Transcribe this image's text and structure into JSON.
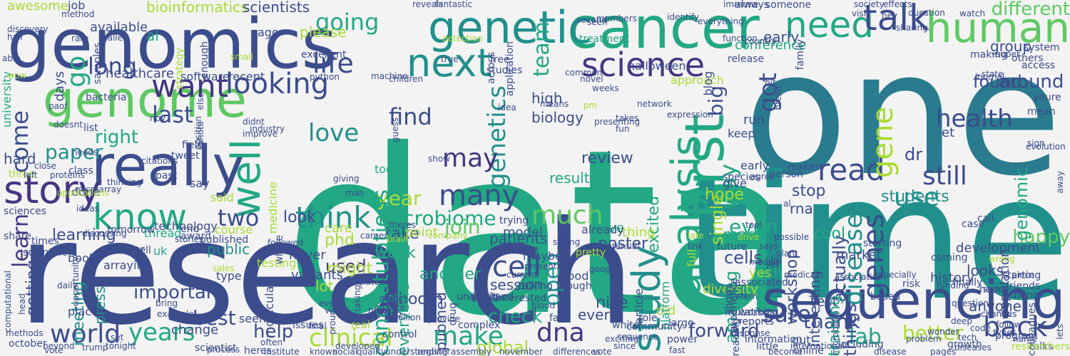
{
  "palette": {
    "background": "#f3f3f3",
    "navy": "#3b4d8c",
    "indigo": "#453581",
    "teal": "#2a7b8e",
    "cyan": "#21908c",
    "green": "#22a884",
    "lightgreen": "#5ec962",
    "lime": "#a8db34",
    "yellow": "#d8e219"
  },
  "words": [
    {
      "text": "data"
    },
    {
      "text": "one"
    },
    {
      "text": "time"
    },
    {
      "text": "research"
    },
    {
      "text": "genomics"
    },
    {
      "text": "cancer"
    },
    {
      "text": "genome"
    },
    {
      "text": "really"
    },
    {
      "text": "genetic"
    },
    {
      "text": "human"
    },
    {
      "text": "need"
    },
    {
      "text": "talk"
    },
    {
      "text": "next"
    },
    {
      "text": "science"
    },
    {
      "text": "sequencing"
    },
    {
      "text": "first"
    },
    {
      "text": "study"
    },
    {
      "text": "analysis"
    },
    {
      "text": "story"
    },
    {
      "text": "know"
    },
    {
      "text": "well"
    },
    {
      "text": "want"
    },
    {
      "text": "looking"
    },
    {
      "text": "life"
    },
    {
      "text": "read"
    },
    {
      "text": "use"
    },
    {
      "text": "still"
    },
    {
      "text": "health"
    },
    {
      "text": "many"
    },
    {
      "text": "much"
    },
    {
      "text": "think"
    },
    {
      "text": "cell"
    },
    {
      "text": "dna"
    },
    {
      "text": "world"
    },
    {
      "text": "make"
    },
    {
      "text": "back"
    },
    {
      "text": "clinical"
    },
    {
      "text": "sure"
    },
    {
      "text": "genetics"
    },
    {
      "text": "love"
    },
    {
      "text": "may"
    },
    {
      "text": "two"
    },
    {
      "text": "going"
    },
    {
      "text": "long"
    },
    {
      "text": "go"
    },
    {
      "text": "last"
    },
    {
      "text": "paper"
    },
    {
      "text": "year"
    },
    {
      "text": "come"
    },
    {
      "text": "find"
    },
    {
      "text": "team"
    },
    {
      "text": "got"
    },
    {
      "text": "gene"
    },
    {
      "text": "genes"
    },
    {
      "text": "disease"
    },
    {
      "text": "way"
    },
    {
      "text": "years"
    },
    {
      "text": "best"
    },
    {
      "text": "lab"
    },
    {
      "text": "better"
    },
    {
      "text": "help"
    },
    {
      "text": "important"
    },
    {
      "text": "microbiome"
    },
    {
      "text": "join"
    },
    {
      "text": "open"
    },
    {
      "text": "learn"
    },
    {
      "text": "right"
    },
    {
      "text": "hard"
    },
    {
      "text": "even"
    },
    {
      "text": "forward"
    },
    {
      "text": "check"
    },
    {
      "text": "used"
    },
    {
      "text": "big"
    },
    {
      "text": "thank"
    },
    {
      "text": "happy"
    },
    {
      "text": "found"
    },
    {
      "text": "different"
    },
    {
      "text": "around"
    },
    {
      "text": "high"
    },
    {
      "text": "biology"
    },
    {
      "text": "week"
    },
    {
      "text": "another"
    },
    {
      "text": "take"
    },
    {
      "text": "review"
    },
    {
      "text": "poster"
    },
    {
      "text": "excited"
    },
    {
      "text": "cells"
    },
    {
      "text": "made"
    },
    {
      "text": "stop"
    },
    {
      "text": "cool"
    },
    {
      "text": "hope"
    },
    {
      "text": "students"
    },
    {
      "text": "dr"
    },
    {
      "text": "genomic"
    },
    {
      "text": "things"
    },
    {
      "text": "interesting"
    },
    {
      "text": "actually"
    },
    {
      "text": "early"
    },
    {
      "text": "run"
    },
    {
      "text": "please"
    },
    {
      "text": "bioinformatics"
    },
    {
      "text": "scientists"
    },
    {
      "text": "available"
    },
    {
      "text": "awesome"
    },
    {
      "text": "job"
    },
    {
      "text": "ai"
    },
    {
      "text": "patients"
    },
    {
      "text": "conference"
    },
    {
      "text": "group"
    },
    {
      "text": "workshop"
    },
    {
      "text": "development"
    },
    {
      "text": "rna"
    },
    {
      "text": "th"
    },
    {
      "text": "done"
    },
    {
      "text": "results"
    },
    {
      "text": "said"
    },
    {
      "text": "lot"
    },
    {
      "text": "phd"
    },
    {
      "text": "might"
    },
    {
      "text": "congratulations"
    },
    {
      "text": "booth"
    },
    {
      "text": "looks"
    },
    {
      "text": "training"
    },
    {
      "text": "amazing"
    },
    {
      "text": "single"
    },
    {
      "text": "look"
    },
    {
      "text": "learning"
    },
    {
      "text": "getting"
    },
    {
      "text": "meeting"
    },
    {
      "text": "press"
    },
    {
      "text": "public"
    },
    {
      "text": "nice"
    },
    {
      "text": "every"
    },
    {
      "text": "everyone"
    },
    {
      "text": "pubmed"
    },
    {
      "text": "global"
    },
    {
      "text": "model"
    },
    {
      "text": "live"
    },
    {
      "text": "thing"
    },
    {
      "text": "care"
    },
    {
      "text": "point"
    },
    {
      "text": "test"
    },
    {
      "text": "population"
    },
    {
      "text": "et"
    },
    {
      "text": "gut"
    },
    {
      "text": "yes"
    },
    {
      "text": "market"
    },
    {
      "text": "history"
    },
    {
      "text": "anyone"
    },
    {
      "text": "never"
    },
    {
      "text": "variants"
    },
    {
      "text": "session"
    },
    {
      "text": "protein"
    },
    {
      "text": "wait"
    },
    {
      "text": "maybe"
    },
    {
      "text": "already"
    },
    {
      "text": "food"
    },
    {
      "text": "old"
    },
    {
      "text": "diversity"
    },
    {
      "text": "full"
    },
    {
      "text": "platform"
    },
    {
      "text": "article"
    },
    {
      "text": "experience"
    },
    {
      "text": "early"
    },
    {
      "text": "tools"
    },
    {
      "text": "days"
    },
    {
      "text": "healthcare"
    },
    {
      "text": "software"
    },
    {
      "text": "recent"
    },
    {
      "text": "say"
    },
    {
      "text": "medicine"
    },
    {
      "text": "technology"
    },
    {
      "text": "thread"
    },
    {
      "text": "course"
    },
    {
      "text": "halloween"
    },
    {
      "text": "give"
    },
    {
      "text": "approach"
    },
    {
      "text": "keep"
    },
    {
      "text": "blog"
    },
    {
      "text": "seems"
    },
    {
      "text": "change"
    },
    {
      "text": "place"
    },
    {
      "text": "book"
    },
    {
      "text": "uk"
    },
    {
      "text": "type"
    },
    {
      "text": "arrayit"
    },
    {
      "text": "testing"
    },
    {
      "text": "university"
    },
    {
      "text": "bacteria"
    },
    {
      "text": "samples"
    },
    {
      "text": "strategy"
    },
    {
      "text": "enough"
    },
    {
      "text": "ago"
    },
    {
      "text": "free"
    },
    {
      "text": "studies"
    },
    {
      "text": "across"
    },
    {
      "text": "excellent"
    },
    {
      "text": "treatment"
    },
    {
      "text": "application"
    },
    {
      "text": "family"
    },
    {
      "text": "fantastic"
    },
    {
      "text": "reveals"
    },
    {
      "text": "someone"
    },
    {
      "text": "always"
    },
    {
      "text": "release"
    },
    {
      "text": "making"
    },
    {
      "text": "system"
    },
    {
      "text": "access"
    },
    {
      "text": "others"
    },
    {
      "text": "mean"
    },
    {
      "text": "youre"
    },
    {
      "text": "state"
    },
    {
      "text": "follow"
    },
    {
      "text": "nov"
    },
    {
      "text": "field"
    },
    {
      "text": "tweet"
    },
    {
      "text": "past"
    },
    {
      "text": "list"
    },
    {
      "text": "three"
    },
    {
      "text": "class"
    },
    {
      "text": "number"
    },
    {
      "text": "tell"
    },
    {
      "text": "award"
    },
    {
      "text": "end"
    },
    {
      "text": "published"
    },
    {
      "text": "tomorrow"
    },
    {
      "text": "opportunity"
    },
    {
      "text": "times"
    },
    {
      "text": "sciences"
    },
    {
      "text": "share"
    },
    {
      "text": "scientific"
    },
    {
      "text": "computational"
    },
    {
      "text": "trying"
    },
    {
      "text": "talking"
    },
    {
      "text": "pretty"
    },
    {
      "text": "far"
    },
    {
      "text": "molecular"
    },
    {
      "text": "whole"
    },
    {
      "text": "future"
    },
    {
      "text": "species"
    },
    {
      "text": "person"
    },
    {
      "text": "working"
    },
    {
      "text": "shows"
    },
    {
      "text": "associated"
    },
    {
      "text": "reports"
    },
    {
      "text": "online"
    },
    {
      "text": "risk"
    },
    {
      "text": "finally"
    },
    {
      "text": "friends"
    },
    {
      "text": "editing"
    },
    {
      "text": "coming"
    },
    {
      "text": "call"
    },
    {
      "text": "makes"
    },
    {
      "text": "lol"
    },
    {
      "text": "case"
    },
    {
      "text": "hours"
    },
    {
      "text": "starting"
    },
    {
      "text": "sign"
    },
    {
      "text": "based"
    },
    {
      "text": "starting"
    },
    {
      "text": "evolution"
    },
    {
      "text": "interested"
    },
    {
      "text": "understand"
    },
    {
      "text": "drug"
    },
    {
      "text": "complex"
    },
    {
      "text": "though"
    },
    {
      "text": "white"
    },
    {
      "text": "role"
    },
    {
      "text": "power"
    },
    {
      "text": "large"
    },
    {
      "text": "mutations"
    },
    {
      "text": "reading"
    },
    {
      "text": "issues"
    },
    {
      "text": "real"
    },
    {
      "text": "control"
    },
    {
      "text": "community"
    },
    {
      "text": "information"
    },
    {
      "text": "little"
    },
    {
      "text": "including"
    },
    {
      "text": "growth"
    },
    {
      "text": "program"
    },
    {
      "text": "colleagues"
    },
    {
      "text": "talks"
    },
    {
      "text": "researchers"
    },
    {
      "text": "scientist"
    },
    {
      "text": "heres"
    },
    {
      "text": "set"
    },
    {
      "text": "october"
    },
    {
      "text": "trump"
    },
    {
      "text": "tonight"
    },
    {
      "text": "known"
    },
    {
      "text": "social"
    },
    {
      "text": "developed"
    },
    {
      "text": "quality"
    },
    {
      "text": "understanding"
    },
    {
      "text": "assembly"
    },
    {
      "text": "differences"
    },
    {
      "text": "vote"
    },
    {
      "text": "fast"
    },
    {
      "text": "become"
    },
    {
      "text": "international"
    },
    {
      "text": "disease"
    },
    {
      "text": "pages"
    },
    {
      "text": "diseases"
    },
    {
      "text": "tech"
    },
    {
      "text": "code"
    },
    {
      "text": "series"
    },
    {
      "text": "name"
    },
    {
      "text": "wonder"
    },
    {
      "text": "deep"
    },
    {
      "text": "away"
    },
    {
      "text": "discovery"
    },
    {
      "text": "half"
    },
    {
      "text": "rare"
    },
    {
      "text": "able"
    },
    {
      "text": "method"
    },
    {
      "text": "called"
    },
    {
      "text": "small"
    },
    {
      "text": "python"
    },
    {
      "text": "machine"
    },
    {
      "text": "detection"
    },
    {
      "text": "true"
    },
    {
      "text": "common"
    },
    {
      "text": "novel"
    },
    {
      "text": "function"
    },
    {
      "text": "country"
    },
    {
      "text": "immune"
    },
    {
      "text": "question"
    },
    {
      "text": "sharing"
    },
    {
      "text": "society"
    },
    {
      "text": "visit"
    },
    {
      "text": "effects"
    },
    {
      "text": "super"
    },
    {
      "text": "journal"
    },
    {
      "text": "hey"
    },
    {
      "text": "watch"
    },
    {
      "text": "identify"
    },
    {
      "text": "everything"
    },
    {
      "text": "seen"
    },
    {
      "text": "second"
    },
    {
      "text": "members"
    },
    {
      "text": "takes"
    },
    {
      "text": "weeks"
    },
    {
      "text": "idea"
    },
    {
      "text": "preprint"
    },
    {
      "text": "provide"
    },
    {
      "text": "game"
    },
    {
      "text": "meet"
    },
    {
      "text": "event"
    },
    {
      "text": "feeling"
    },
    {
      "text": "proud"
    },
    {
      "text": "chance"
    },
    {
      "text": "guess"
    },
    {
      "text": "children"
    },
    {
      "text": "virus"
    },
    {
      "text": "show"
    },
    {
      "text": "register"
    },
    {
      "text": "means"
    },
    {
      "text": "pm"
    },
    {
      "text": "presenting"
    },
    {
      "text": "network"
    },
    {
      "text": "expression"
    },
    {
      "text": "fun"
    },
    {
      "text": "tool"
    },
    {
      "text": "possible"
    },
    {
      "text": "agree"
    },
    {
      "text": "al"
    },
    {
      "text": "brexit"
    },
    {
      "text": "bit"
    },
    {
      "text": "wow"
    },
    {
      "text": "paof"
    },
    {
      "text": "needs"
    },
    {
      "text": "doesnt"
    },
    {
      "text": "left"
    },
    {
      "text": "ideas"
    },
    {
      "text": "else"
    },
    {
      "text": "photo"
    },
    {
      "text": "industry"
    },
    {
      "text": "didnt"
    },
    {
      "text": "position"
    },
    {
      "text": "improve"
    },
    {
      "text": "citations"
    },
    {
      "text": "close"
    },
    {
      "text": "microarray"
    },
    {
      "text": "thinking"
    },
    {
      "text": "applications"
    },
    {
      "text": "proteins"
    },
    {
      "text": "discussing"
    },
    {
      "text": "stories"
    },
    {
      "text": "sales"
    },
    {
      "text": "team"
    },
    {
      "text": "giving"
    },
    {
      "text": "theres"
    },
    {
      "text": "career"
    },
    {
      "text": "brain"
    },
    {
      "text": "company"
    },
    {
      "text": "major"
    },
    {
      "text": "current"
    },
    {
      "text": "night"
    },
    {
      "text": "present"
    },
    {
      "text": "strong"
    },
    {
      "text": "potential"
    },
    {
      "text": "google"
    },
    {
      "text": "late"
    },
    {
      "text": "link"
    },
    {
      "text": "drive"
    },
    {
      "text": "says"
    },
    {
      "text": "medical"
    },
    {
      "text": "plant"
    },
    {
      "text": "yet"
    },
    {
      "text": "stem"
    },
    {
      "text": "association"
    },
    {
      "text": "especially"
    },
    {
      "text": "piece"
    },
    {
      "text": "wrong"
    },
    {
      "text": "bring"
    },
    {
      "text": "example"
    },
    {
      "text": "process"
    },
    {
      "text": "often"
    },
    {
      "text": "institute"
    },
    {
      "text": "million"
    },
    {
      "text": "related"
    },
    {
      "text": "taking"
    },
    {
      "text": "november"
    },
    {
      "text": "exciting"
    },
    {
      "text": "since"
    },
    {
      "text": "sequence"
    },
    {
      "text": "response"
    },
    {
      "text": "lets"
    },
    {
      "text": "microbiota"
    },
    {
      "text": "problem"
    },
    {
      "text": "questions"
    },
    {
      "text": "types"
    },
    {
      "text": "changes"
    },
    {
      "text": "beyond"
    },
    {
      "text": "vote"
    },
    {
      "text": "methods"
    },
    {
      "text": "head"
    },
    {
      "text": "daily"
    },
    {
      "text": "final"
    },
    {
      "text": "followed"
    },
    {
      "text": "man"
    },
    {
      "text": "blood"
    },
    {
      "text": "models"
    },
    {
      "text": "funding"
    },
    {
      "text": "thought"
    },
    {
      "text": "kind"
    },
    {
      "text": "id"
    },
    {
      "text": "c"
    },
    {
      "text": "k"
    },
    {
      "text": "f"
    },
    {
      "text": "w"
    },
    {
      "text": "j"
    }
  ]
}
